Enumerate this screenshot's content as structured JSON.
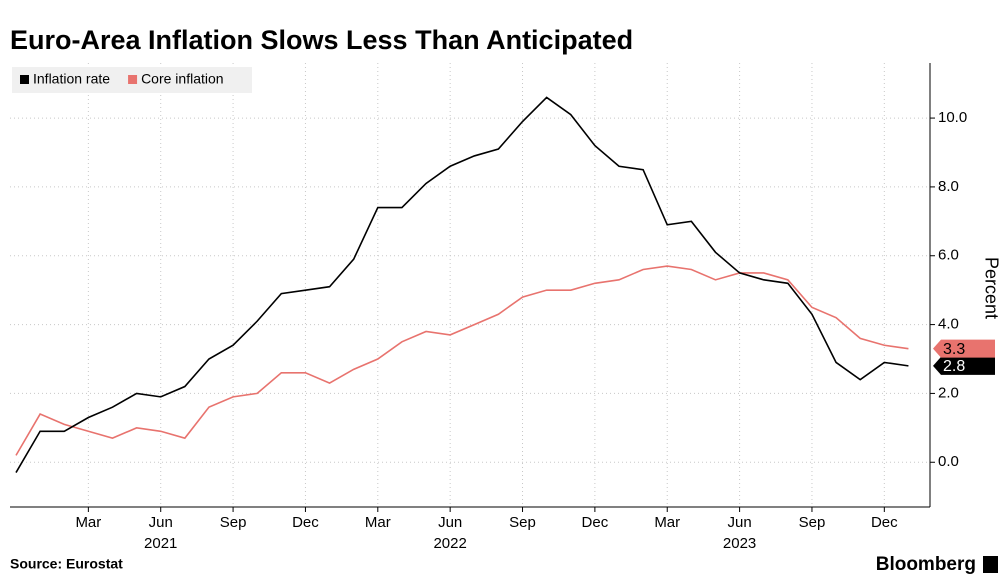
{
  "chart_data": {
    "type": "line",
    "title": "Euro-Area Inflation Slows Less Than Anticipated",
    "source": "Source: Eurostat",
    "brand": "Bloomberg",
    "y_axis_label": "Percent",
    "categories": [
      null,
      null,
      null,
      "Mar",
      null,
      null,
      "Jun",
      null,
      null,
      "Sep",
      null,
      null,
      "Dec",
      null,
      null,
      "Mar",
      null,
      null,
      "Jun",
      null,
      null,
      "Sep",
      null,
      null,
      "Dec",
      null,
      null,
      "Mar",
      null,
      null,
      "Jun",
      null,
      null,
      "Sep",
      null,
      null,
      "Dec",
      null
    ],
    "year_labels": [
      "2021",
      "2022",
      "2023"
    ],
    "series": [
      {
        "name": "Inflation rate",
        "color": "#000000",
        "values": [
          -0.3,
          0.9,
          0.9,
          1.3,
          1.6,
          2.0,
          1.9,
          2.2,
          3.0,
          3.4,
          4.1,
          4.9,
          5.0,
          5.1,
          5.9,
          7.4,
          7.4,
          8.1,
          8.6,
          8.9,
          9.1,
          9.9,
          10.6,
          10.1,
          9.2,
          8.6,
          8.5,
          6.9,
          7.0,
          6.1,
          5.5,
          5.3,
          5.2,
          4.3,
          2.9,
          2.4,
          2.9,
          2.8
        ],
        "value_labels": [
          null,
          null,
          null,
          null,
          null,
          null,
          null,
          null,
          null,
          null,
          null,
          null,
          null,
          null,
          null,
          null,
          null,
          null,
          null,
          null,
          null,
          null,
          null,
          null,
          null,
          null,
          null,
          null,
          null,
          null,
          null,
          null,
          null,
          null,
          null,
          null,
          null,
          "2.8"
        ]
      },
      {
        "name": "Core inflation",
        "color": "#e8736e",
        "values": [
          0.2,
          1.4,
          1.1,
          0.9,
          0.7,
          1.0,
          0.9,
          0.7,
          1.6,
          1.9,
          2.0,
          2.6,
          2.6,
          2.3,
          2.7,
          3.0,
          3.5,
          3.8,
          3.7,
          4.0,
          4.3,
          4.8,
          5.0,
          5.0,
          5.2,
          5.3,
          5.6,
          5.7,
          5.6,
          5.3,
          5.5,
          5.5,
          5.3,
          4.5,
          4.2,
          3.6,
          3.4,
          3.3
        ],
        "value_labels": [
          null,
          null,
          null,
          null,
          null,
          null,
          null,
          null,
          null,
          null,
          null,
          null,
          null,
          null,
          null,
          null,
          null,
          null,
          null,
          null,
          null,
          null,
          null,
          null,
          null,
          null,
          null,
          null,
          null,
          null,
          null,
          null,
          null,
          null,
          null,
          null,
          null,
          "3.3"
        ]
      }
    ],
    "ylim": [
      -1.3,
      11.6
    ],
    "yticks": [
      {
        "value": 0,
        "label": "0.0"
      },
      {
        "value": 2,
        "label": "2.0"
      },
      {
        "value": 4,
        "label": "4.0"
      },
      {
        "value": 6,
        "label": "6.0"
      },
      {
        "value": 8,
        "label": "8.0"
      },
      {
        "value": 10,
        "label": "10.0"
      }
    ],
    "grid": true,
    "legend": "top-left"
  }
}
